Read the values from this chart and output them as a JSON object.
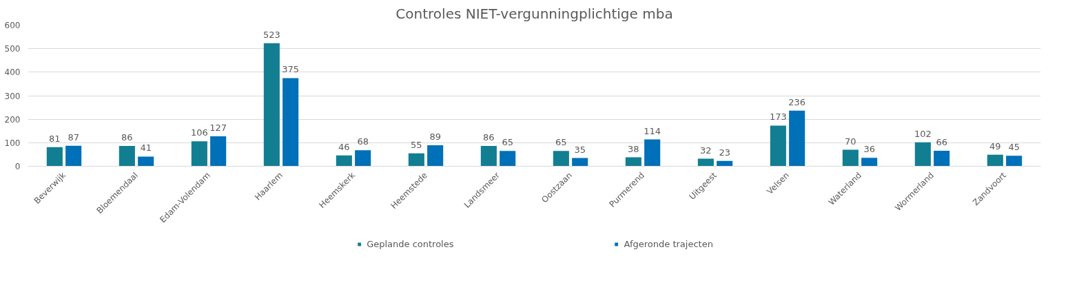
{
  "chart_data": {
    "type": "bar",
    "title": "Controles NIET-vergunningplichtige mba",
    "categories": [
      "Beverwijk",
      "Bloemendaal",
      "Edam-Volendam",
      "Haarlem",
      "Heemskerk",
      "Heemstede",
      "Landsmeer",
      "Oostzaan",
      "Purmerend",
      "Uitgeest",
      "Velsen",
      "Waterland",
      "Wormerland",
      "Zandvoort"
    ],
    "series": [
      {
        "name": "Geplande controles",
        "color": "#127e92",
        "values": [
          81,
          86,
          106,
          523,
          46,
          55,
          86,
          65,
          38,
          32,
          173,
          70,
          102,
          49
        ]
      },
      {
        "name": "Afgeronde trajecten",
        "color": "#0070b8",
        "values": [
          87,
          41,
          127,
          375,
          68,
          89,
          65,
          35,
          114,
          23,
          236,
          36,
          66,
          45
        ]
      }
    ],
    "ylim": [
      0,
      600
    ],
    "yticks": [
      0,
      100,
      200,
      300,
      400,
      500,
      600
    ],
    "grid": "y",
    "legend": "bottom",
    "data_labels": true
  }
}
